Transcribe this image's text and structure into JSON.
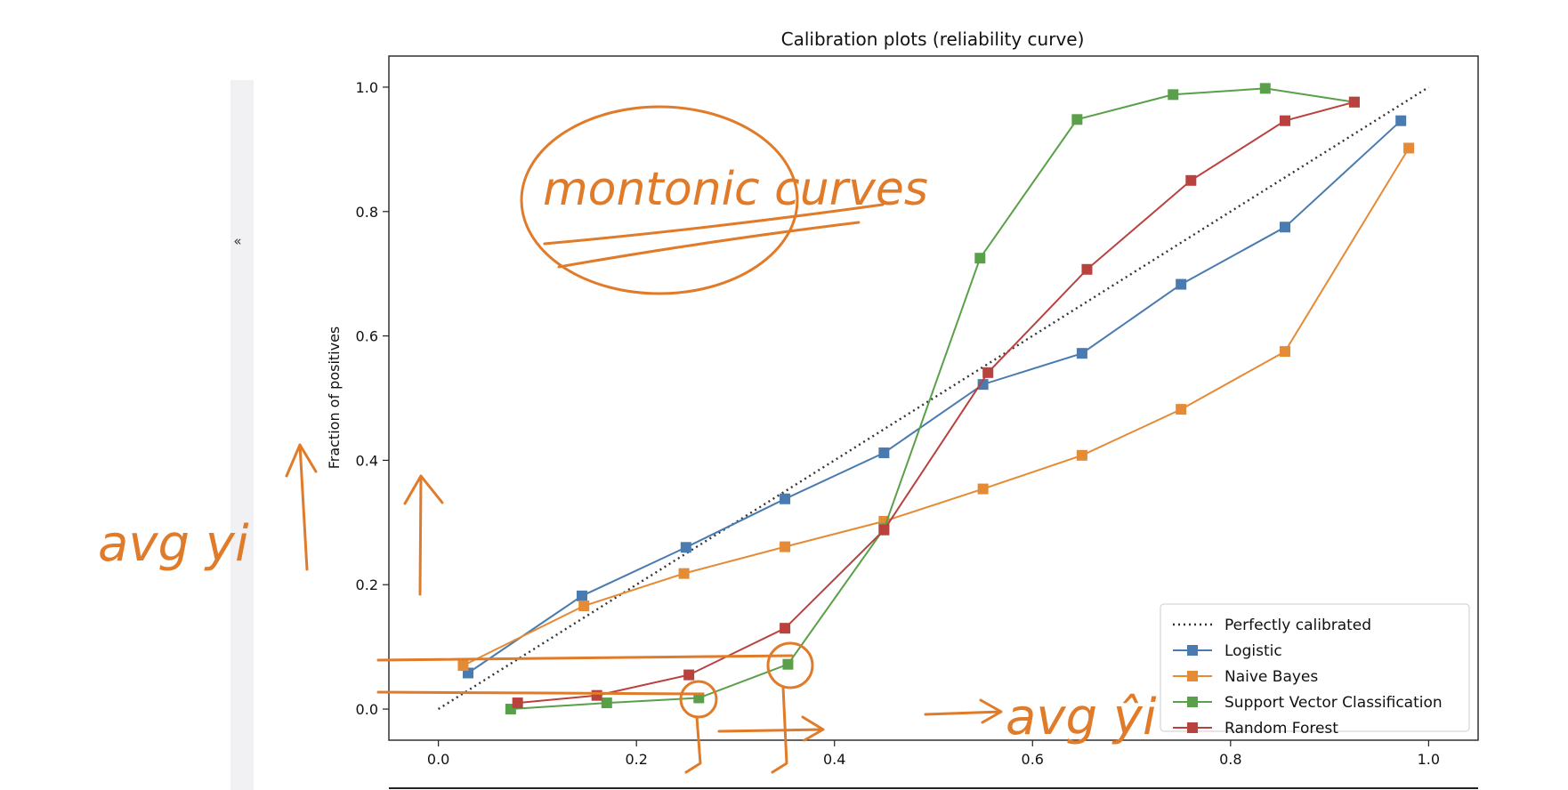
{
  "sidebar": {
    "collapse_label": "«"
  },
  "chart_data": {
    "type": "line",
    "title": "Calibration plots  (reliability curve)",
    "xlabel": "",
    "ylabel": "Fraction of positives",
    "xlim": [
      -0.05,
      1.05
    ],
    "ylim": [
      -0.05,
      1.05
    ],
    "x_ticks": [
      0.0,
      0.2,
      0.4,
      0.6,
      0.8,
      1.0
    ],
    "y_ticks": [
      0.0,
      0.2,
      0.4,
      0.6,
      0.8,
      1.0
    ],
    "x_tick_labels": [
      "0.0",
      "0.2",
      "0.4",
      "0.6",
      "0.8",
      "1.0"
    ],
    "y_tick_labels": [
      "0.0",
      "0.2",
      "0.4",
      "0.6",
      "0.8",
      "1.0"
    ],
    "grid": false,
    "legend_position": "lower-right",
    "series": [
      {
        "name": "Perfectly calibrated",
        "color": "#333333",
        "style": "dotted",
        "x": [
          0.0,
          1.0
        ],
        "y": [
          0.0,
          1.0
        ]
      },
      {
        "name": "Logistic",
        "color": "#4a7bb0",
        "marker": "square",
        "x": [
          0.03,
          0.145,
          0.25,
          0.35,
          0.45,
          0.55,
          0.65,
          0.75,
          0.855,
          0.972
        ],
        "y": [
          0.058,
          0.182,
          0.26,
          0.338,
          0.412,
          0.522,
          0.572,
          0.683,
          0.775,
          0.946
        ]
      },
      {
        "name": "Naive Bayes",
        "color": "#e58a35",
        "marker": "square",
        "x": [
          0.025,
          0.147,
          0.248,
          0.35,
          0.45,
          0.55,
          0.65,
          0.75,
          0.855,
          0.98
        ],
        "y": [
          0.07,
          0.166,
          0.218,
          0.261,
          0.302,
          0.354,
          0.408,
          0.482,
          0.575,
          0.902
        ]
      },
      {
        "name": "Support Vector Classification",
        "color": "#5aa04a",
        "marker": "square",
        "x": [
          0.073,
          0.17,
          0.263,
          0.353,
          0.45,
          0.547,
          0.645,
          0.742,
          0.835,
          0.925
        ],
        "y": [
          0.0,
          0.01,
          0.018,
          0.072,
          0.29,
          0.725,
          0.948,
          0.988,
          0.998,
          0.976
        ]
      },
      {
        "name": "Random Forest",
        "color": "#b9423f",
        "marker": "square",
        "x": [
          0.08,
          0.16,
          0.253,
          0.35,
          0.45,
          0.555,
          0.655,
          0.76,
          0.855,
          0.925
        ],
        "y": [
          0.01,
          0.022,
          0.055,
          0.13,
          0.288,
          0.541,
          0.707,
          0.85,
          0.946,
          0.976
        ]
      }
    ]
  },
  "annotations": {
    "note_circle": "montonic curves",
    "left_note": "avg yi",
    "right_note": "avg ŷi"
  }
}
